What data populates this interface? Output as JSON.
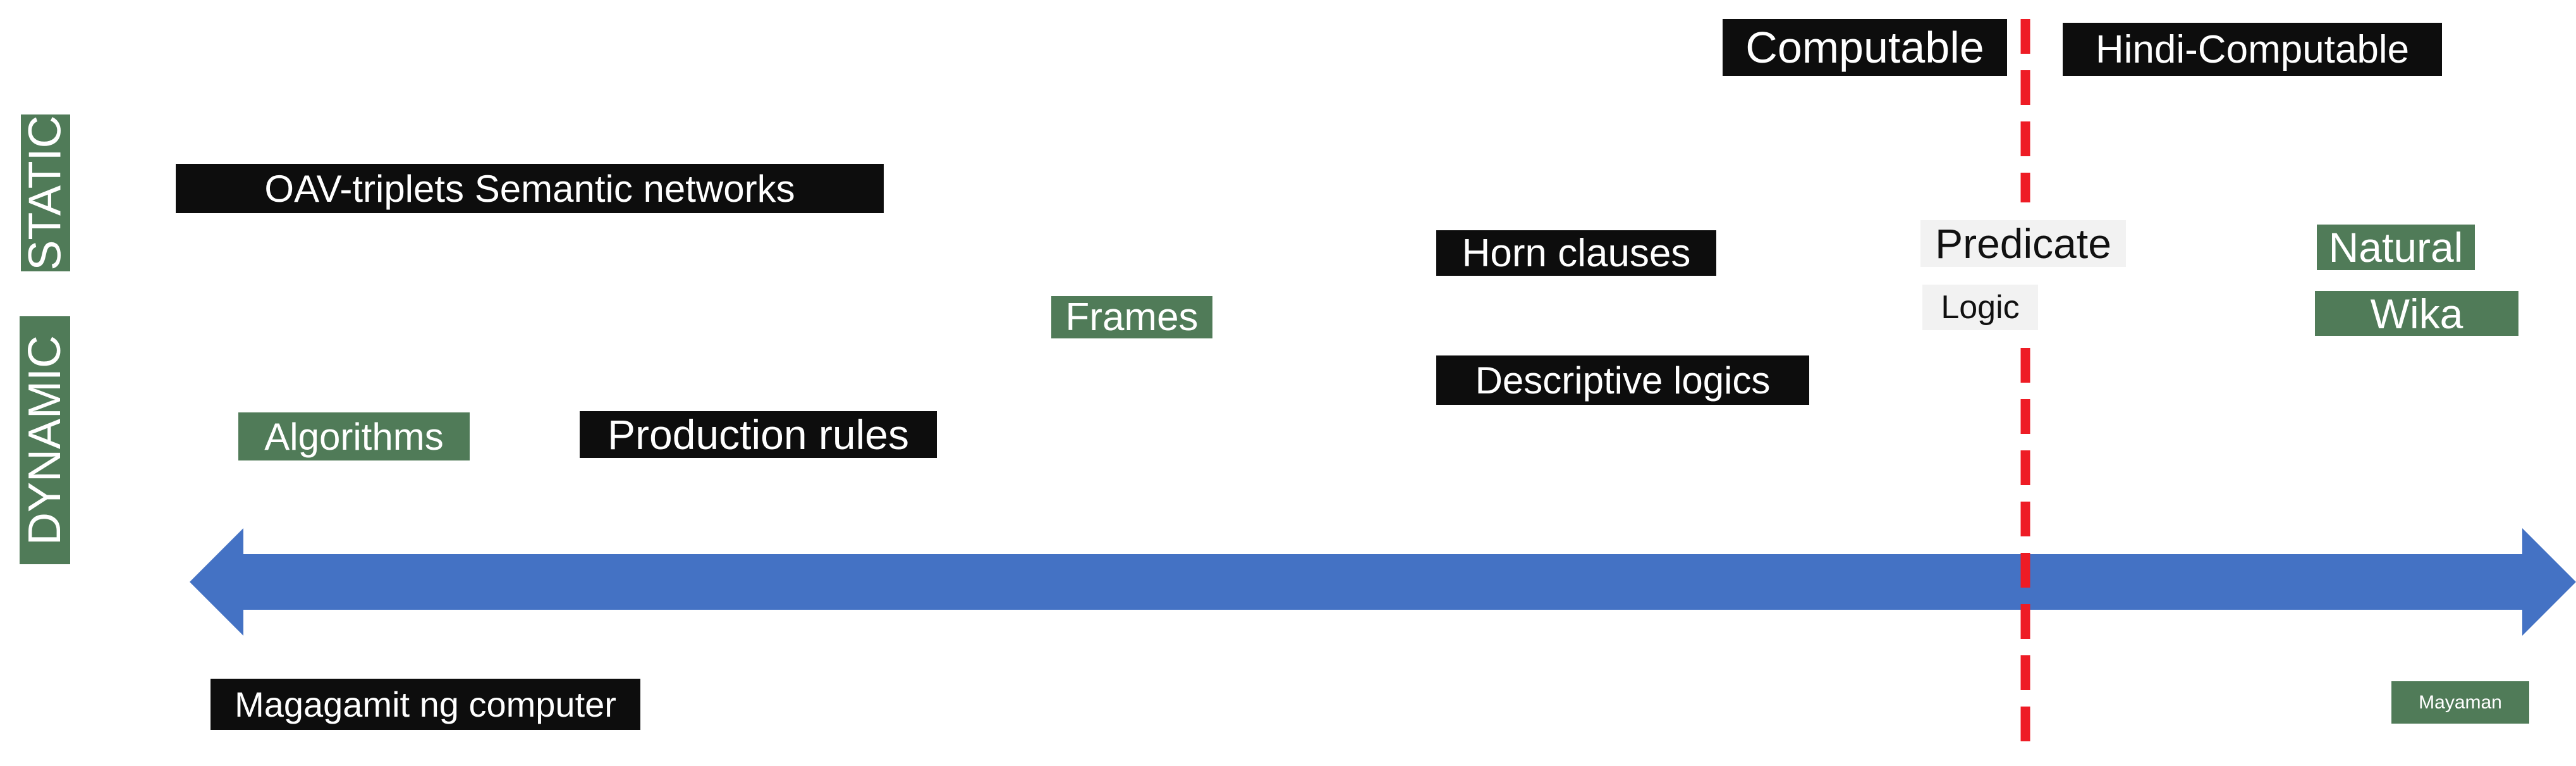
{
  "axis_labels": {
    "static": "STATIC",
    "dynamic": "DYNAMIC"
  },
  "divider": {
    "left": "Computable",
    "right": "Hindi-Computable"
  },
  "items": {
    "oav": "OAV-triplets Semantic networks",
    "horn": "Horn clauses",
    "predicate": "Predicate",
    "logic": "Logic",
    "natural": "Natural",
    "wika": "Wika",
    "frames": "Frames",
    "descriptive": "Descriptive logics",
    "algorithms": "Algorithms",
    "production": "Production rules"
  },
  "scale": {
    "left_end": "Magagamit ng computer",
    "right_end": "Mayaman"
  },
  "colors": {
    "arrow": "#4472c4",
    "divider_line": "#ee1c25",
    "green_box": "#507b58",
    "black_box": "#0d0d0d"
  }
}
